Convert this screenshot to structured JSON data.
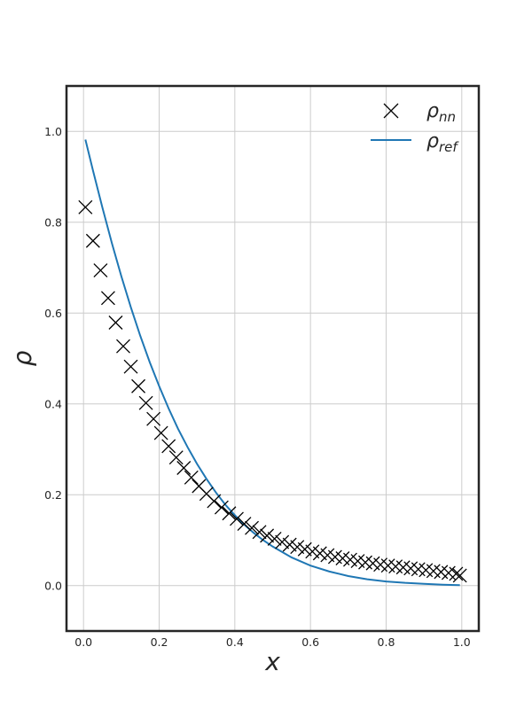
{
  "chart_data": {
    "type": "line",
    "title": "",
    "xlabel": "x",
    "ylabel": "ρ",
    "xlim": [
      -0.045,
      1.045
    ],
    "ylim": [
      -0.1,
      1.1
    ],
    "grid": true,
    "legend_position": "top-right",
    "xticks": [
      0.0,
      0.2,
      0.4,
      0.6,
      0.8,
      1.0
    ],
    "xtick_labels": [
      "0.0",
      "0.2",
      "0.4",
      "0.6",
      "0.8",
      "1.0"
    ],
    "yticks": [
      0.0,
      0.2,
      0.4,
      0.6,
      0.8,
      1.0
    ],
    "ytick_labels": [
      "0.0",
      "0.2",
      "0.4",
      "0.6",
      "0.8",
      "1.0"
    ],
    "series": [
      {
        "name": "ρ_nn",
        "legend_main": "ρ",
        "legend_sub": "nn",
        "style": "marker-x",
        "color": "#000000",
        "x": [
          0.005,
          0.025,
          0.045,
          0.065,
          0.085,
          0.105,
          0.125,
          0.145,
          0.165,
          0.185,
          0.205,
          0.225,
          0.245,
          0.265,
          0.285,
          0.305,
          0.325,
          0.345,
          0.365,
          0.385,
          0.405,
          0.425,
          0.445,
          0.465,
          0.485,
          0.505,
          0.525,
          0.545,
          0.565,
          0.585,
          0.605,
          0.625,
          0.645,
          0.665,
          0.685,
          0.705,
          0.725,
          0.745,
          0.765,
          0.785,
          0.805,
          0.825,
          0.845,
          0.865,
          0.885,
          0.905,
          0.925,
          0.945,
          0.965,
          0.985,
          0.995
        ],
        "y": [
          0.833,
          0.759,
          0.694,
          0.633,
          0.579,
          0.527,
          0.482,
          0.439,
          0.402,
          0.367,
          0.336,
          0.307,
          0.282,
          0.259,
          0.238,
          0.219,
          0.202,
          0.186,
          0.172,
          0.159,
          0.147,
          0.136,
          0.127,
          0.118,
          0.11,
          0.103,
          0.096,
          0.09,
          0.085,
          0.08,
          0.075,
          0.071,
          0.067,
          0.063,
          0.06,
          0.057,
          0.054,
          0.051,
          0.049,
          0.046,
          0.044,
          0.042,
          0.04,
          0.038,
          0.036,
          0.034,
          0.032,
          0.03,
          0.028,
          0.026,
          0.022
        ]
      },
      {
        "name": "ρ_ref",
        "legend_main": "ρ",
        "legend_sub": "ref",
        "style": "line",
        "color": "#1f77b4",
        "x": [
          0.005,
          0.025,
          0.05,
          0.075,
          0.1,
          0.125,
          0.15,
          0.175,
          0.2,
          0.225,
          0.25,
          0.275,
          0.3,
          0.325,
          0.35,
          0.375,
          0.4,
          0.425,
          0.45,
          0.475,
          0.5,
          0.55,
          0.6,
          0.65,
          0.7,
          0.75,
          0.8,
          0.85,
          0.9,
          0.95,
          0.995
        ],
        "y": [
          0.982,
          0.914,
          0.832,
          0.754,
          0.681,
          0.613,
          0.55,
          0.492,
          0.439,
          0.39,
          0.345,
          0.305,
          0.268,
          0.235,
          0.205,
          0.178,
          0.155,
          0.134,
          0.116,
          0.1,
          0.086,
          0.062,
          0.044,
          0.031,
          0.021,
          0.014,
          0.009,
          0.006,
          0.004,
          0.002,
          0.001
        ]
      }
    ]
  }
}
